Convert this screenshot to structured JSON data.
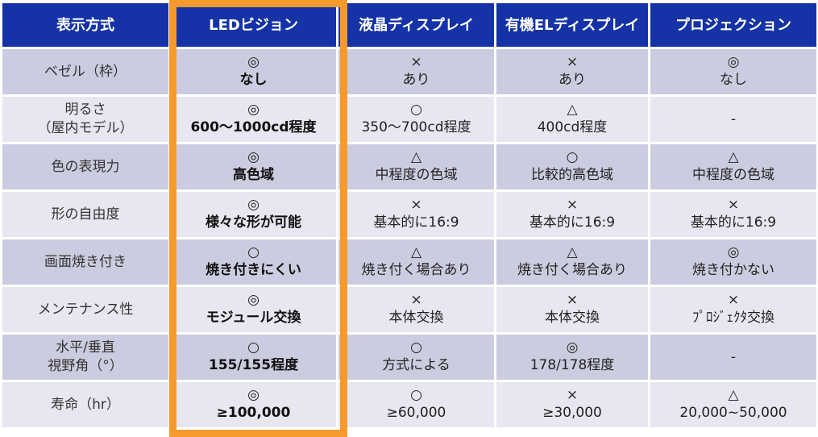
{
  "table": {
    "headers": [
      "表示方式",
      "LEDビジョン",
      "液晶ディスプレイ",
      "有機ELディスプレイ",
      "プロジェクション"
    ],
    "highlight_color": "#f79a2e",
    "header_color": "#1533a6",
    "rows": [
      {
        "label": "ベゼル（枠）",
        "cells": [
          {
            "sym": "◎",
            "val": "なし"
          },
          {
            "sym": "×",
            "val": "あり"
          },
          {
            "sym": "×",
            "val": "あり"
          },
          {
            "sym": "◎",
            "val": "なし"
          }
        ]
      },
      {
        "label": "明るさ\n（屋内モデル）",
        "cells": [
          {
            "sym": "◎",
            "val": "600～1000cd程度"
          },
          {
            "sym": "○",
            "val": "350～700cd程度"
          },
          {
            "sym": "△",
            "val": "400cd程度"
          },
          {
            "sym": "",
            "val": "-"
          }
        ]
      },
      {
        "label": "色の表現力",
        "cells": [
          {
            "sym": "◎",
            "val": "高色域"
          },
          {
            "sym": "△",
            "val": "中程度の色域"
          },
          {
            "sym": "○",
            "val": "比較的高色域"
          },
          {
            "sym": "△",
            "val": "中程度の色域"
          }
        ]
      },
      {
        "label": "形の自由度",
        "cells": [
          {
            "sym": "◎",
            "val": "様々な形が可能"
          },
          {
            "sym": "×",
            "val": "基本的に16:9"
          },
          {
            "sym": "×",
            "val": "基本的に16:9"
          },
          {
            "sym": "×",
            "val": "基本的に16:9"
          }
        ]
      },
      {
        "label": "画面焼き付き",
        "cells": [
          {
            "sym": "○",
            "val": "焼き付きにくい"
          },
          {
            "sym": "△",
            "val": "焼き付く場合あり"
          },
          {
            "sym": "△",
            "val": "焼き付く場合あり"
          },
          {
            "sym": "◎",
            "val": "焼き付かない"
          }
        ]
      },
      {
        "label": "メンテナンス性",
        "cells": [
          {
            "sym": "◎",
            "val": "モジュール交換"
          },
          {
            "sym": "×",
            "val": "本体交換"
          },
          {
            "sym": "×",
            "val": "本体交換"
          },
          {
            "sym": "×",
            "val": "ﾌﾟﾛｼﾞｪｸﾀ交換"
          }
        ]
      },
      {
        "label": "水平/垂直\n視野角（°）",
        "cells": [
          {
            "sym": "○",
            "val": "155/155程度"
          },
          {
            "sym": "○",
            "val": "方式による"
          },
          {
            "sym": "◎",
            "val": "178/178程度"
          },
          {
            "sym": "",
            "val": "-"
          }
        ]
      },
      {
        "label": "寿命（hr）",
        "cells": [
          {
            "sym": "◎",
            "val": "≥100,000"
          },
          {
            "sym": "○",
            "val": "≥60,000"
          },
          {
            "sym": "×",
            "val": "≥30,000"
          },
          {
            "sym": "△",
            "val": "20,000~50,000"
          }
        ]
      }
    ]
  }
}
